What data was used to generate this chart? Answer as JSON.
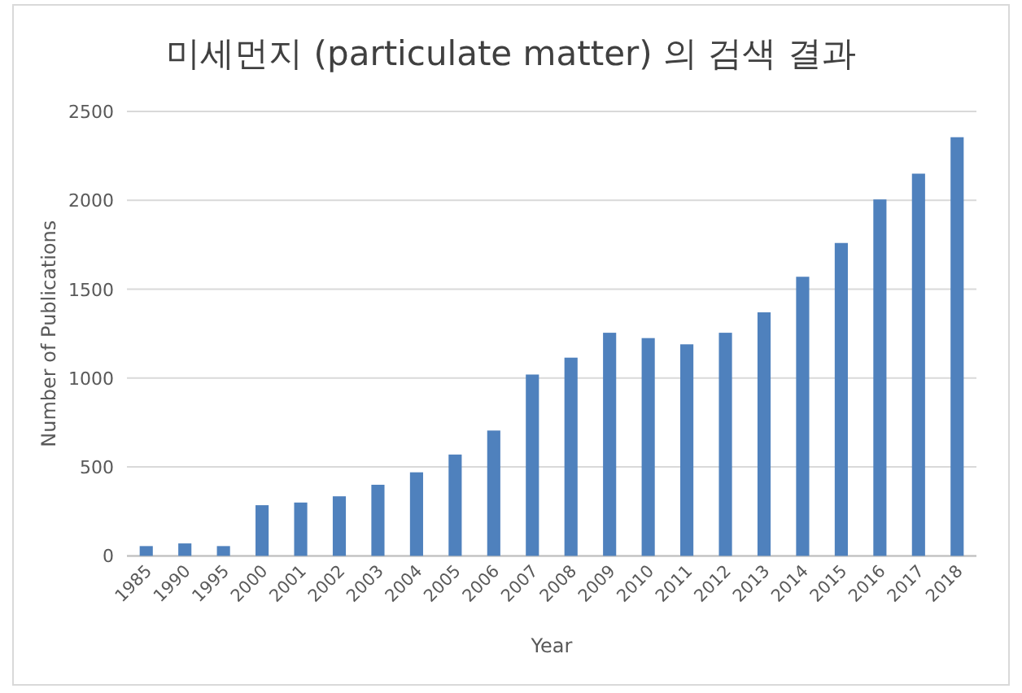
{
  "chart_data": {
    "type": "bar",
    "title": "미세먼지 (particulate matter) 의 검색 결과",
    "xlabel": "Year",
    "ylabel": "Number of Publications",
    "categories": [
      "1985",
      "1990",
      "1995",
      "2000",
      "2001",
      "2002",
      "2003",
      "2004",
      "2005",
      "2006",
      "2007",
      "2008",
      "2009",
      "2010",
      "2011",
      "2012",
      "2013",
      "2014",
      "2015",
      "2016",
      "2017",
      "2018"
    ],
    "values": [
      55,
      70,
      55,
      285,
      300,
      335,
      400,
      470,
      570,
      705,
      1020,
      1115,
      1255,
      1225,
      1190,
      1255,
      1370,
      1570,
      1760,
      2005,
      2150,
      2355
    ],
    "color": "#4f81bd",
    "ylim": [
      0,
      2500
    ],
    "yticks": [
      0,
      500,
      1000,
      1500,
      2000,
      2500
    ],
    "grid": "y"
  }
}
